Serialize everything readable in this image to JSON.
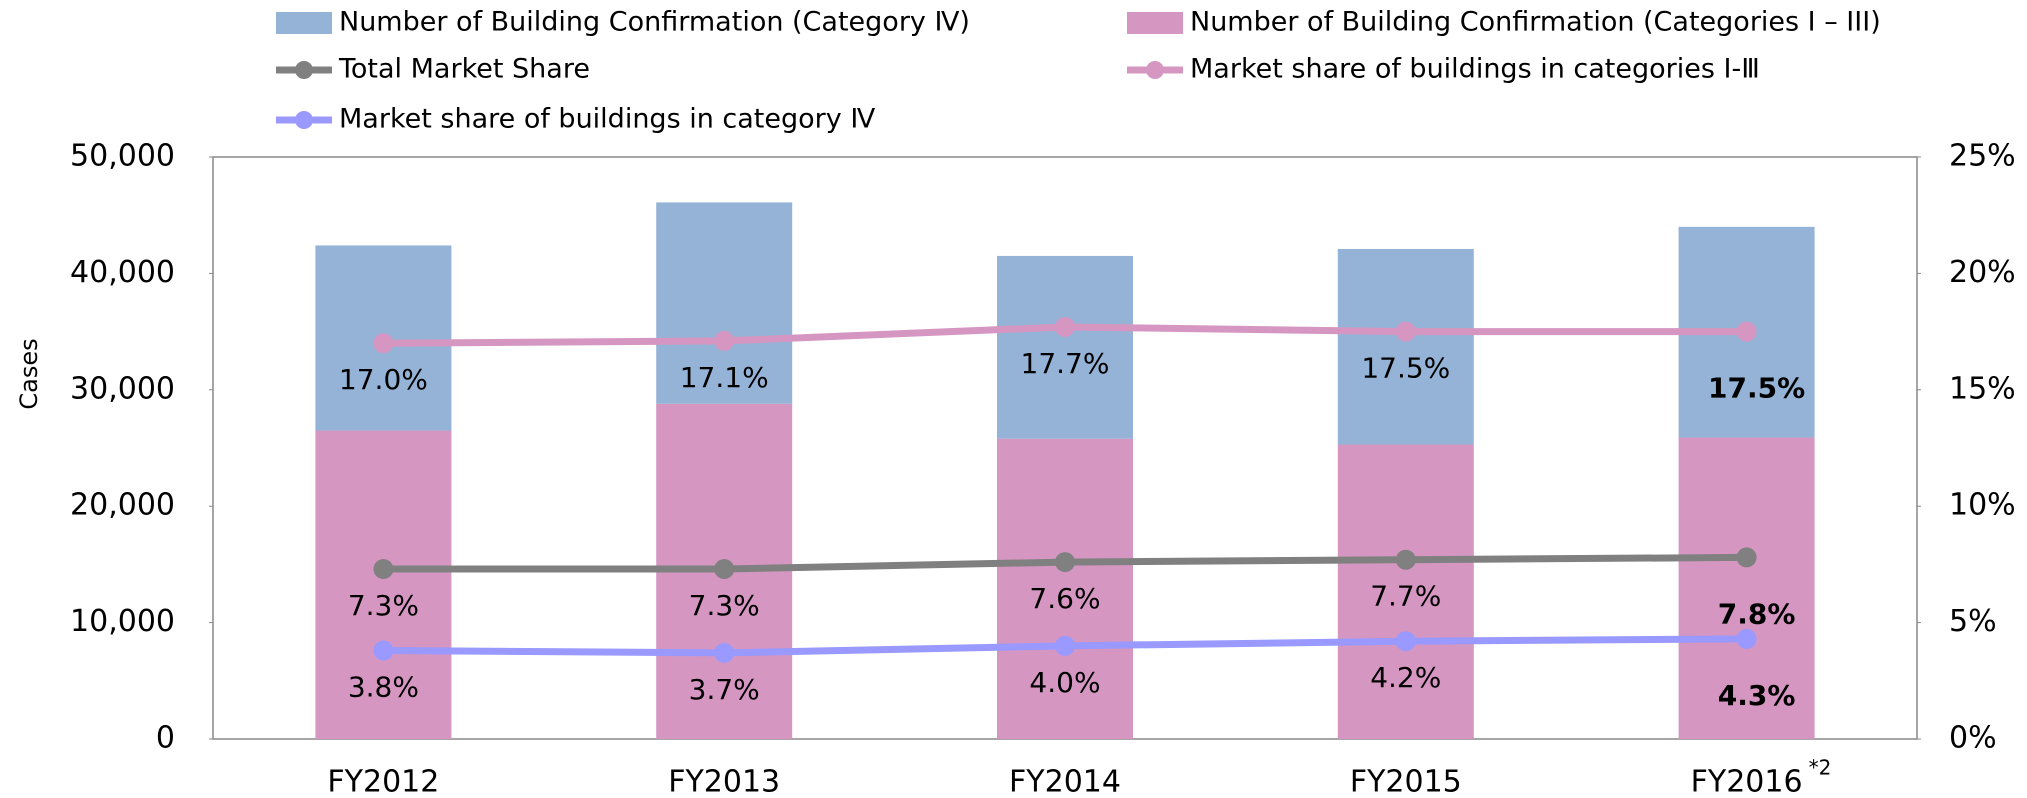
{
  "chart_data": {
    "type": "bar",
    "y_label": "Cases",
    "categories": [
      "FY2012",
      "FY2013",
      "FY2014",
      "FY2015",
      "FY2016"
    ],
    "category_note": "*2",
    "stacked": true,
    "series": [
      {
        "name": "Number of Building Confirmation (Categories I – III)",
        "color": "#d597c2",
        "values": [
          26500,
          28800,
          25800,
          25300,
          25900
        ]
      },
      {
        "name": "Number of Building Confirmation (Category Ⅳ)",
        "color": "#95b3d7",
        "values": [
          15900,
          17300,
          15700,
          16800,
          18100
        ]
      },
      {
        "name": "Total Market Share",
        "type": "line",
        "axis": "y2",
        "color": "#808080",
        "values": [
          7.3,
          7.3,
          7.6,
          7.7,
          7.8
        ],
        "value_labels": [
          "7.3%",
          "7.3%",
          "7.6%",
          "7.7%",
          "7.8%"
        ]
      },
      {
        "name": "Market share of buildings in categories Ⅰ-Ⅲ",
        "type": "line",
        "axis": "y2",
        "color": "#d597c2",
        "values": [
          17.0,
          17.1,
          17.7,
          17.5,
          17.5
        ],
        "value_labels": [
          "17.0%",
          "17.1%",
          "17.7%",
          "17.5%",
          "17.5%"
        ]
      },
      {
        "name": "Market share of buildings in category Ⅳ",
        "type": "line",
        "axis": "y2",
        "color": "#9999ff",
        "values": [
          3.8,
          3.7,
          4.0,
          4.2,
          4.3
        ],
        "value_labels": [
          "3.8%",
          "3.7%",
          "4.0%",
          "4.2%",
          "4.3%"
        ]
      }
    ],
    "ylim": [
      0,
      50000
    ],
    "yticks": [
      0,
      {
        "value": 10000,
        "label": "10,000"
      },
      {
        "value": 20000,
        "label": "20,000"
      },
      {
        "value": 30000,
        "label": "30,000"
      },
      {
        "value": 40000,
        "label": "40,000"
      },
      {
        "value": 50000,
        "label": "50,000"
      }
    ],
    "y2lim": [
      0,
      25
    ],
    "y2ticks": [
      {
        "value": 0,
        "label": "0%"
      },
      {
        "value": 5,
        "label": "5%"
      },
      {
        "value": 10,
        "label": "10%"
      },
      {
        "value": 15,
        "label": "15%"
      },
      {
        "value": 20,
        "label": "20%"
      },
      {
        "value": 25,
        "label": "25%"
      }
    ]
  }
}
